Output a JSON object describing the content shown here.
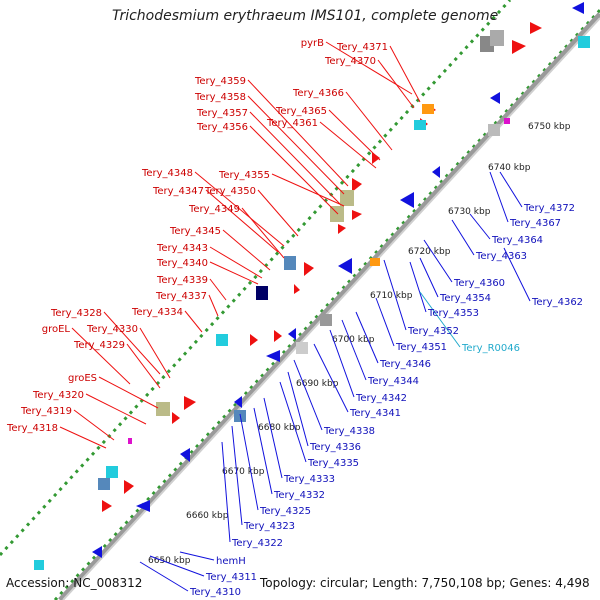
{
  "header": {
    "title": "Trichodesmium erythraeum IMS101, complete genome"
  },
  "footer": {
    "accession": "Accession: NC_008312",
    "topology": "Topology: circular; Length: 7,750,108 bp; Genes: 4,498"
  },
  "colors": {
    "backbone": "#999999",
    "forward_gene": "#ee1111",
    "reverse_gene": "#1111dd",
    "forward_label": "#cc0000",
    "reverse_label": "#1111bb",
    "rna_label": "#22aacc",
    "gc_dots": "#339933",
    "rna_gene": "#22ccdd",
    "category_olive": "#bbbb88",
    "category_gray": "#888888",
    "category_steel": "#5588bb",
    "category_orange": "#ff9911",
    "category_navy": "#000066",
    "category_magenta": "#dd11cc"
  },
  "scale_labels": [
    "6650 kbp",
    "6660 kbp",
    "6670 kbp",
    "6680 kbp",
    "6690 kbp",
    "6700 kbp",
    "6710 kbp",
    "6720 kbp",
    "6730 kbp",
    "6740 kbp",
    "6750 kbp"
  ],
  "forward_labels": [
    "pyrB",
    "Tery_4371",
    "Tery_4370",
    "Tery_4366",
    "Tery_4365",
    "Tery_4361",
    "Tery_4359",
    "Tery_4358",
    "Tery_4357",
    "Tery_4356",
    "Tery_4355",
    "Tery_4350",
    "Tery_4348",
    "Tery_4347",
    "Tery_4349",
    "Tery_4345",
    "Tery_4343",
    "Tery_4340",
    "Tery_4339",
    "Tery_4337",
    "Tery_4334",
    "Tery_4328",
    "Tery_4330",
    "groEL",
    "Tery_4329",
    "groES",
    "Tery_4320",
    "Tery_4319",
    "Tery_4318"
  ],
  "reverse_labels": [
    "Tery_4372",
    "Tery_4367",
    "Tery_4364",
    "Tery_4363",
    "Tery_4360",
    "Tery_4362",
    "Tery_4354",
    "Tery_4353",
    "Tery_4352",
    "Tery_R0046",
    "Tery_4351",
    "Tery_4346",
    "Tery_4344",
    "Tery_4342",
    "Tery_4341",
    "Tery_4338",
    "Tery_4336",
    "Tery_4335",
    "Tery_4333",
    "Tery_4332",
    "Tery_4325",
    "Tery_4323",
    "Tery_4322",
    "hemH",
    "Tery_4311",
    "Tery_4310"
  ]
}
